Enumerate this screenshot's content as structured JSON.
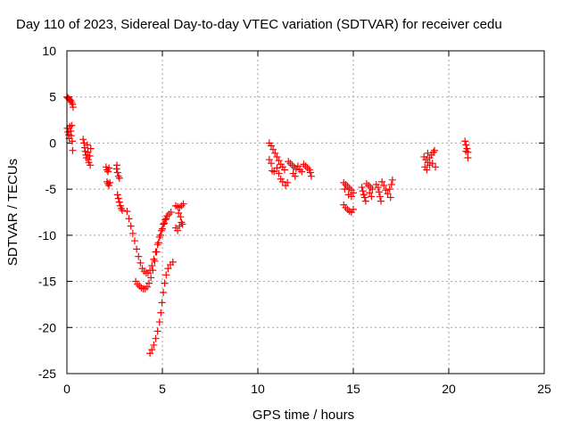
{
  "chart_data": {
    "type": "scatter",
    "title": "Day 110 of 2023, Sidereal Day-to-day VTEC variation (SDTVAR) for receiver cedu",
    "xlabel": "GPS time / hours",
    "ylabel": "SDTVAR / TECUs",
    "xlim": [
      0,
      25
    ],
    "ylim": [
      -25,
      10
    ],
    "x_ticks": [
      "0",
      "5",
      "10",
      "15",
      "20",
      "25"
    ],
    "y_ticks": [
      "10",
      "5",
      "0",
      "-5",
      "-10",
      "-15",
      "-20",
      "-25"
    ],
    "grid": true,
    "marker": "+",
    "marker_color": "#ff0000",
    "series": [
      {
        "name": "SDTVAR",
        "points": [
          [
            0.0,
            5.0
          ],
          [
            0.05,
            4.9
          ],
          [
            0.1,
            4.8
          ],
          [
            0.15,
            4.7
          ],
          [
            0.2,
            4.6
          ],
          [
            0.25,
            4.4
          ],
          [
            0.3,
            4.2
          ],
          [
            0.32,
            3.9
          ],
          [
            0.02,
            1.6
          ],
          [
            0.06,
            1.2
          ],
          [
            0.1,
            0.9
          ],
          [
            0.12,
            0.5
          ],
          [
            0.15,
            1.8
          ],
          [
            0.2,
            1.3
          ],
          [
            0.22,
            0.8
          ],
          [
            0.25,
            1.9
          ],
          [
            0.28,
            0.2
          ],
          [
            0.3,
            -0.8
          ],
          [
            0.85,
            0.4
          ],
          [
            0.9,
            0.0
          ],
          [
            0.93,
            -0.5
          ],
          [
            0.96,
            -0.9
          ],
          [
            1.0,
            -1.3
          ],
          [
            1.03,
            -1.6
          ],
          [
            1.07,
            -0.2
          ],
          [
            1.1,
            -1.0
          ],
          [
            1.12,
            -1.8
          ],
          [
            1.15,
            -2.1
          ],
          [
            1.2,
            -1.4
          ],
          [
            1.22,
            -2.4
          ],
          [
            1.25,
            -0.6
          ],
          [
            2.05,
            -2.6
          ],
          [
            2.1,
            -2.9
          ],
          [
            2.15,
            -3.1
          ],
          [
            2.2,
            -2.7
          ],
          [
            2.1,
            -4.2
          ],
          [
            2.15,
            -4.4
          ],
          [
            2.2,
            -4.6
          ],
          [
            2.25,
            -4.3
          ],
          [
            2.6,
            -2.8
          ],
          [
            2.65,
            -3.2
          ],
          [
            2.7,
            -3.6
          ],
          [
            2.75,
            -3.8
          ],
          [
            2.62,
            -2.4
          ],
          [
            2.65,
            -5.6
          ],
          [
            2.7,
            -6.0
          ],
          [
            2.75,
            -6.4
          ],
          [
            2.8,
            -6.8
          ],
          [
            2.85,
            -7.1
          ],
          [
            2.9,
            -7.3
          ],
          [
            3.15,
            -7.4
          ],
          [
            3.25,
            -8.2
          ],
          [
            3.35,
            -9.0
          ],
          [
            3.45,
            -9.8
          ],
          [
            3.55,
            -10.6
          ],
          [
            3.65,
            -11.5
          ],
          [
            3.75,
            -12.3
          ],
          [
            3.85,
            -13.0
          ],
          [
            3.95,
            -13.6
          ],
          [
            4.05,
            -13.9
          ],
          [
            4.15,
            -14.1
          ],
          [
            4.25,
            -14.1
          ],
          [
            4.35,
            -13.8
          ],
          [
            4.45,
            -13.3
          ],
          [
            4.55,
            -12.6
          ],
          [
            4.65,
            -11.8
          ],
          [
            4.75,
            -11.0
          ],
          [
            4.85,
            -10.2
          ],
          [
            4.95,
            -9.5
          ],
          [
            5.05,
            -8.8
          ],
          [
            5.15,
            -8.3
          ],
          [
            5.25,
            -7.9
          ],
          [
            5.35,
            -7.7
          ],
          [
            5.45,
            -7.5
          ],
          [
            3.6,
            -15.0
          ],
          [
            3.7,
            -15.3
          ],
          [
            3.8,
            -15.5
          ],
          [
            3.9,
            -15.7
          ],
          [
            4.0,
            -15.8
          ],
          [
            4.1,
            -15.8
          ],
          [
            4.2,
            -15.6
          ],
          [
            4.3,
            -15.2
          ],
          [
            4.4,
            -14.6
          ],
          [
            4.5,
            -13.8
          ],
          [
            4.6,
            -12.8
          ],
          [
            4.7,
            -11.8
          ],
          [
            4.8,
            -10.8
          ],
          [
            4.9,
            -10.0
          ],
          [
            5.0,
            -9.3
          ],
          [
            5.1,
            -8.7
          ],
          [
            5.2,
            -8.2
          ],
          [
            4.35,
            -22.8
          ],
          [
            4.45,
            -22.4
          ],
          [
            4.55,
            -21.9
          ],
          [
            4.65,
            -21.2
          ],
          [
            4.75,
            -20.4
          ],
          [
            4.85,
            -19.4
          ],
          [
            4.92,
            -18.4
          ],
          [
            4.98,
            -17.3
          ],
          [
            5.05,
            -16.2
          ],
          [
            5.12,
            -15.2
          ],
          [
            5.2,
            -14.3
          ],
          [
            5.3,
            -13.6
          ],
          [
            5.42,
            -13.2
          ],
          [
            5.55,
            -12.9
          ],
          [
            5.7,
            -6.8
          ],
          [
            5.8,
            -6.9
          ],
          [
            5.9,
            -7.0
          ],
          [
            6.0,
            -6.8
          ],
          [
            6.1,
            -6.6
          ],
          [
            5.85,
            -7.6
          ],
          [
            5.95,
            -8.0
          ],
          [
            5.7,
            -9.2
          ],
          [
            5.8,
            -9.5
          ],
          [
            5.9,
            -9.0
          ],
          [
            6.0,
            -8.6
          ],
          [
            6.05,
            -8.8
          ],
          [
            10.6,
            0.0
          ],
          [
            10.7,
            -0.3
          ],
          [
            10.8,
            -0.7
          ],
          [
            10.9,
            -1.1
          ],
          [
            11.0,
            -1.5
          ],
          [
            11.1,
            -1.9
          ],
          [
            11.2,
            -2.3
          ],
          [
            11.3,
            -2.6
          ],
          [
            11.4,
            -2.9
          ],
          [
            10.6,
            -1.8
          ],
          [
            10.7,
            -2.2
          ],
          [
            10.75,
            -3.0
          ],
          [
            10.85,
            -3.1
          ],
          [
            11.0,
            -2.7
          ],
          [
            11.1,
            -3.3
          ],
          [
            11.2,
            -3.9
          ],
          [
            11.3,
            -4.2
          ],
          [
            11.45,
            -4.6
          ],
          [
            11.55,
            -4.3
          ],
          [
            11.6,
            -2.0
          ],
          [
            11.7,
            -2.2
          ],
          [
            11.8,
            -2.4
          ],
          [
            11.9,
            -2.6
          ],
          [
            12.0,
            -2.8
          ],
          [
            12.1,
            -2.5
          ],
          [
            12.2,
            -2.9
          ],
          [
            12.3,
            -3.1
          ],
          [
            11.85,
            -3.3
          ],
          [
            11.95,
            -3.6
          ],
          [
            12.4,
            -2.3
          ],
          [
            12.5,
            -2.5
          ],
          [
            12.6,
            -2.7
          ],
          [
            12.7,
            -2.9
          ],
          [
            12.75,
            -3.2
          ],
          [
            12.8,
            -3.6
          ],
          [
            14.5,
            -4.3
          ],
          [
            14.6,
            -4.5
          ],
          [
            14.7,
            -4.7
          ],
          [
            14.8,
            -4.9
          ],
          [
            14.9,
            -5.1
          ],
          [
            15.0,
            -5.4
          ],
          [
            14.55,
            -5.0
          ],
          [
            14.75,
            -5.6
          ],
          [
            14.9,
            -5.8
          ],
          [
            14.5,
            -6.7
          ],
          [
            14.6,
            -7.0
          ],
          [
            14.7,
            -7.2
          ],
          [
            14.8,
            -7.4
          ],
          [
            14.9,
            -7.5
          ],
          [
            15.0,
            -7.2
          ],
          [
            15.45,
            -4.8
          ],
          [
            15.5,
            -5.2
          ],
          [
            15.55,
            -5.6
          ],
          [
            15.6,
            -5.9
          ],
          [
            15.65,
            -6.3
          ],
          [
            15.7,
            -4.4
          ],
          [
            15.8,
            -4.6
          ],
          [
            15.9,
            -4.8
          ],
          [
            16.0,
            -5.0
          ],
          [
            15.85,
            -5.4
          ],
          [
            15.95,
            -5.8
          ],
          [
            16.2,
            -4.5
          ],
          [
            16.3,
            -4.8
          ],
          [
            16.35,
            -5.3
          ],
          [
            16.4,
            -5.8
          ],
          [
            16.45,
            -6.3
          ],
          [
            16.5,
            -4.2
          ],
          [
            16.6,
            -4.6
          ],
          [
            16.7,
            -5.1
          ],
          [
            16.8,
            -5.5
          ],
          [
            16.9,
            -5.0
          ],
          [
            17.0,
            -4.5
          ],
          [
            17.05,
            -4.0
          ],
          [
            16.95,
            -5.9
          ],
          [
            18.7,
            -1.5
          ],
          [
            18.8,
            -1.8
          ],
          [
            18.9,
            -2.1
          ],
          [
            19.0,
            -1.6
          ],
          [
            19.1,
            -1.3
          ],
          [
            19.2,
            -1.0
          ],
          [
            19.25,
            -0.8
          ],
          [
            18.75,
            -2.6
          ],
          [
            18.85,
            -2.9
          ],
          [
            19.0,
            -2.4
          ],
          [
            19.15,
            -2.2
          ],
          [
            19.3,
            -2.6
          ],
          [
            18.9,
            -1.1
          ],
          [
            20.85,
            0.2
          ],
          [
            20.9,
            -0.2
          ],
          [
            20.95,
            -0.6
          ],
          [
            21.0,
            -1.0
          ],
          [
            21.0,
            -1.6
          ],
          [
            20.9,
            -0.9
          ]
        ]
      }
    ]
  }
}
